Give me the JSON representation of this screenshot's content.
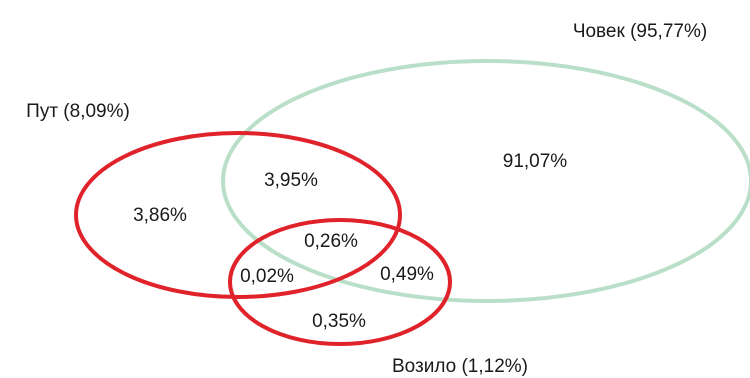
{
  "colors": {
    "chovek": "#b9dfc8",
    "put": "#e0232b",
    "vozilo": "#e0232b",
    "text": "#1a1a1a"
  },
  "sets": {
    "chovek": {
      "label": "Човек (95,77%)"
    },
    "put": {
      "label": "Пут (8,09%)"
    },
    "vozilo": {
      "label": "Возило (1,12%)"
    }
  },
  "regions": {
    "chovek_only": "91,07%",
    "put_only": "3,86%",
    "put_chovek": "3,95%",
    "all_three": "0,26%",
    "put_vozilo": "0,02%",
    "chovek_vozilo": "0,49%",
    "vozilo_only": "0,35%"
  }
}
